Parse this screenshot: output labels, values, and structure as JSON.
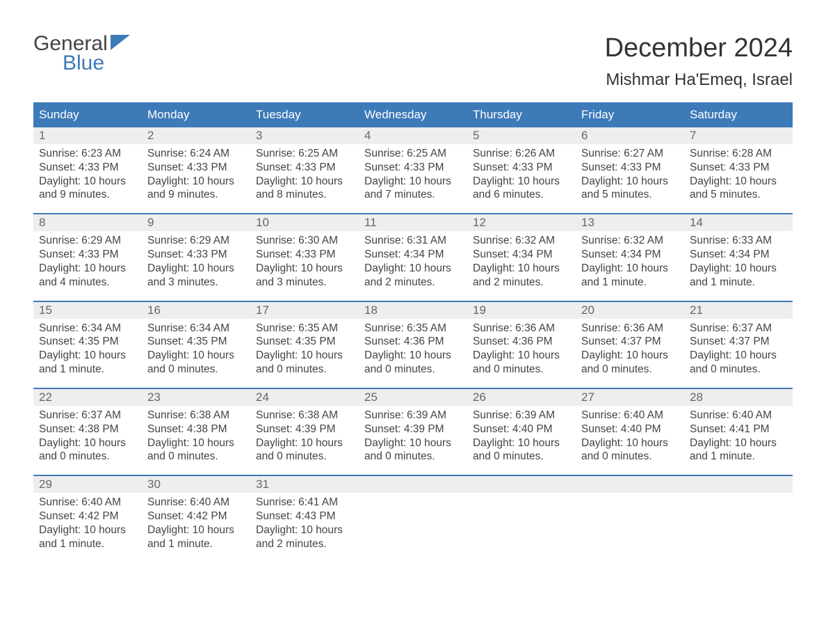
{
  "brand": {
    "general": "General",
    "blue": "Blue"
  },
  "header": {
    "month_title": "December 2024",
    "location": "Mishmar Ha'Emeq, Israel"
  },
  "colors": {
    "header_bg": "#3d7ab8",
    "header_text": "#ffffff",
    "daynum_bg": "#eeeeee",
    "daynum_text": "#666666",
    "body_text": "#444444",
    "border": "#3d7ab8",
    "page_bg": "#ffffff",
    "logo_blue": "#3d7ab8"
  },
  "weekdays": [
    "Sunday",
    "Monday",
    "Tuesday",
    "Wednesday",
    "Thursday",
    "Friday",
    "Saturday"
  ],
  "weeks": [
    [
      {
        "num": "1",
        "sunrise": "Sunrise: 6:23 AM",
        "sunset": "Sunset: 4:33 PM",
        "daylight": "Daylight: 10 hours and 9 minutes."
      },
      {
        "num": "2",
        "sunrise": "Sunrise: 6:24 AM",
        "sunset": "Sunset: 4:33 PM",
        "daylight": "Daylight: 10 hours and 9 minutes."
      },
      {
        "num": "3",
        "sunrise": "Sunrise: 6:25 AM",
        "sunset": "Sunset: 4:33 PM",
        "daylight": "Daylight: 10 hours and 8 minutes."
      },
      {
        "num": "4",
        "sunrise": "Sunrise: 6:25 AM",
        "sunset": "Sunset: 4:33 PM",
        "daylight": "Daylight: 10 hours and 7 minutes."
      },
      {
        "num": "5",
        "sunrise": "Sunrise: 6:26 AM",
        "sunset": "Sunset: 4:33 PM",
        "daylight": "Daylight: 10 hours and 6 minutes."
      },
      {
        "num": "6",
        "sunrise": "Sunrise: 6:27 AM",
        "sunset": "Sunset: 4:33 PM",
        "daylight": "Daylight: 10 hours and 5 minutes."
      },
      {
        "num": "7",
        "sunrise": "Sunrise: 6:28 AM",
        "sunset": "Sunset: 4:33 PM",
        "daylight": "Daylight: 10 hours and 5 minutes."
      }
    ],
    [
      {
        "num": "8",
        "sunrise": "Sunrise: 6:29 AM",
        "sunset": "Sunset: 4:33 PM",
        "daylight": "Daylight: 10 hours and 4 minutes."
      },
      {
        "num": "9",
        "sunrise": "Sunrise: 6:29 AM",
        "sunset": "Sunset: 4:33 PM",
        "daylight": "Daylight: 10 hours and 3 minutes."
      },
      {
        "num": "10",
        "sunrise": "Sunrise: 6:30 AM",
        "sunset": "Sunset: 4:33 PM",
        "daylight": "Daylight: 10 hours and 3 minutes."
      },
      {
        "num": "11",
        "sunrise": "Sunrise: 6:31 AM",
        "sunset": "Sunset: 4:34 PM",
        "daylight": "Daylight: 10 hours and 2 minutes."
      },
      {
        "num": "12",
        "sunrise": "Sunrise: 6:32 AM",
        "sunset": "Sunset: 4:34 PM",
        "daylight": "Daylight: 10 hours and 2 minutes."
      },
      {
        "num": "13",
        "sunrise": "Sunrise: 6:32 AM",
        "sunset": "Sunset: 4:34 PM",
        "daylight": "Daylight: 10 hours and 1 minute."
      },
      {
        "num": "14",
        "sunrise": "Sunrise: 6:33 AM",
        "sunset": "Sunset: 4:34 PM",
        "daylight": "Daylight: 10 hours and 1 minute."
      }
    ],
    [
      {
        "num": "15",
        "sunrise": "Sunrise: 6:34 AM",
        "sunset": "Sunset: 4:35 PM",
        "daylight": "Daylight: 10 hours and 1 minute."
      },
      {
        "num": "16",
        "sunrise": "Sunrise: 6:34 AM",
        "sunset": "Sunset: 4:35 PM",
        "daylight": "Daylight: 10 hours and 0 minutes."
      },
      {
        "num": "17",
        "sunrise": "Sunrise: 6:35 AM",
        "sunset": "Sunset: 4:35 PM",
        "daylight": "Daylight: 10 hours and 0 minutes."
      },
      {
        "num": "18",
        "sunrise": "Sunrise: 6:35 AM",
        "sunset": "Sunset: 4:36 PM",
        "daylight": "Daylight: 10 hours and 0 minutes."
      },
      {
        "num": "19",
        "sunrise": "Sunrise: 6:36 AM",
        "sunset": "Sunset: 4:36 PM",
        "daylight": "Daylight: 10 hours and 0 minutes."
      },
      {
        "num": "20",
        "sunrise": "Sunrise: 6:36 AM",
        "sunset": "Sunset: 4:37 PM",
        "daylight": "Daylight: 10 hours and 0 minutes."
      },
      {
        "num": "21",
        "sunrise": "Sunrise: 6:37 AM",
        "sunset": "Sunset: 4:37 PM",
        "daylight": "Daylight: 10 hours and 0 minutes."
      }
    ],
    [
      {
        "num": "22",
        "sunrise": "Sunrise: 6:37 AM",
        "sunset": "Sunset: 4:38 PM",
        "daylight": "Daylight: 10 hours and 0 minutes."
      },
      {
        "num": "23",
        "sunrise": "Sunrise: 6:38 AM",
        "sunset": "Sunset: 4:38 PM",
        "daylight": "Daylight: 10 hours and 0 minutes."
      },
      {
        "num": "24",
        "sunrise": "Sunrise: 6:38 AM",
        "sunset": "Sunset: 4:39 PM",
        "daylight": "Daylight: 10 hours and 0 minutes."
      },
      {
        "num": "25",
        "sunrise": "Sunrise: 6:39 AM",
        "sunset": "Sunset: 4:39 PM",
        "daylight": "Daylight: 10 hours and 0 minutes."
      },
      {
        "num": "26",
        "sunrise": "Sunrise: 6:39 AM",
        "sunset": "Sunset: 4:40 PM",
        "daylight": "Daylight: 10 hours and 0 minutes."
      },
      {
        "num": "27",
        "sunrise": "Sunrise: 6:40 AM",
        "sunset": "Sunset: 4:40 PM",
        "daylight": "Daylight: 10 hours and 0 minutes."
      },
      {
        "num": "28",
        "sunrise": "Sunrise: 6:40 AM",
        "sunset": "Sunset: 4:41 PM",
        "daylight": "Daylight: 10 hours and 1 minute."
      }
    ],
    [
      {
        "num": "29",
        "sunrise": "Sunrise: 6:40 AM",
        "sunset": "Sunset: 4:42 PM",
        "daylight": "Daylight: 10 hours and 1 minute."
      },
      {
        "num": "30",
        "sunrise": "Sunrise: 6:40 AM",
        "sunset": "Sunset: 4:42 PM",
        "daylight": "Daylight: 10 hours and 1 minute."
      },
      {
        "num": "31",
        "sunrise": "Sunrise: 6:41 AM",
        "sunset": "Sunset: 4:43 PM",
        "daylight": "Daylight: 10 hours and 2 minutes."
      },
      null,
      null,
      null,
      null
    ]
  ]
}
